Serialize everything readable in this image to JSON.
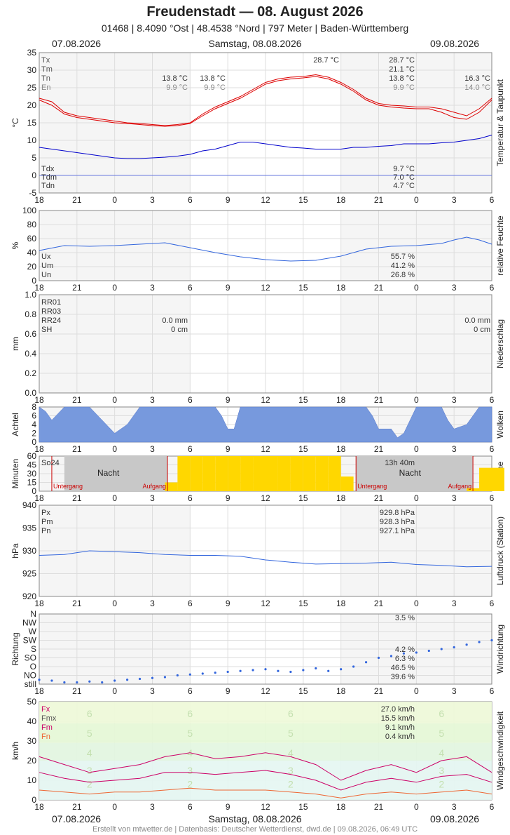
{
  "header": {
    "title": "Freudenstadt  —  08. August 2026",
    "subtitle": "01468  |  8.4090 °Ost  |  48.4538 °Nord  |  797 Meter  |  Baden-Württemberg",
    "date_left": "07.08.2026",
    "date_center": "Samstag, 08.08.2026",
    "date_right": "09.08.2026"
  },
  "footer": "Erstellt von mtwetter.de | Datenbasis: Deutscher Wetterdienst, dwd.de | 09.08.2026, 06:49 UTC",
  "x_ticks": [
    "18",
    "21",
    "0",
    "3",
    "6",
    "9",
    "12",
    "15",
    "18",
    "21",
    "0",
    "3",
    "6"
  ],
  "colors": {
    "temp": "#dd0000",
    "dew": "#0000cc",
    "humidity": "#3366dd",
    "clouds": "#7799dd",
    "sun": "#ffd700",
    "pressure": "#3366dd",
    "direction": "#3366dd",
    "fx": "#cc0066",
    "fm": "#cc0066",
    "fn": "#ee6633"
  },
  "chart_data": [
    {
      "type": "line",
      "panel": "temperature",
      "ylabel": "°C",
      "side_label": "Temperatur & Taupunkt",
      "ylim": [
        -5,
        35
      ],
      "yticks": [
        "35",
        "30",
        "25",
        "20",
        "15",
        "10",
        "5",
        "0",
        "-5"
      ],
      "legend": [
        {
          "label": "Tx",
          "color": "#555"
        },
        {
          "label": "Tm",
          "color": "#555"
        },
        {
          "label": "Tn",
          "color": "#555"
        },
        {
          "label": "En",
          "color": "#888"
        }
      ],
      "legend_dew": [
        {
          "label": "Tdx"
        },
        {
          "label": "Tdm"
        },
        {
          "label": "Tdn"
        }
      ],
      "annotations": [
        {
          "text": "13.8 °C",
          "col": "a"
        },
        {
          "text": "9.9 °C",
          "col": "a"
        },
        {
          "text": "13.8 °C",
          "col": "b"
        },
        {
          "text": "9.9 °C",
          "col": "b"
        },
        {
          "text": "28.7 °C",
          "col": "c"
        },
        {
          "text": "28.7 °C",
          "col": "d"
        },
        {
          "text": "21.1 °C",
          "col": "d"
        },
        {
          "text": "13.8 °C",
          "col": "d"
        },
        {
          "text": "9.9 °C",
          "col": "d"
        },
        {
          "text": "16.3 °C",
          "col": "e"
        },
        {
          "text": "14.0 °C",
          "col": "e"
        },
        {
          "text": "9.7 °C",
          "col": "f"
        },
        {
          "text": "7.0 °C",
          "col": "f"
        },
        {
          "text": "4.7 °C",
          "col": "f"
        }
      ],
      "x_hours": [
        0,
        1,
        2,
        3,
        4,
        5,
        6,
        7,
        8,
        9,
        10,
        11,
        12,
        13,
        14,
        15,
        16,
        17,
        18,
        19,
        20,
        21,
        22,
        23,
        24,
        25,
        26,
        27,
        28,
        29,
        30,
        31,
        32,
        33,
        34,
        35,
        36
      ],
      "series": [
        {
          "name": "Tx",
          "values": [
            22,
            21,
            18,
            17,
            16.5,
            16,
            15.5,
            15,
            14.8,
            14.5,
            14.2,
            14.5,
            15,
            17.5,
            19.5,
            21,
            22.5,
            24.5,
            26.5,
            27.5,
            28,
            28.2,
            28.7,
            28,
            26.5,
            24.5,
            22,
            20.5,
            20,
            19.8,
            19.5,
            19.5,
            19,
            18,
            17,
            19,
            22
          ]
        },
        {
          "name": "Tm",
          "values": [
            21.5,
            20,
            17.5,
            16.5,
            16,
            15.5,
            15,
            14.8,
            14.5,
            14.2,
            14,
            14.2,
            14.8,
            17,
            19,
            20.5,
            22,
            24,
            26,
            27,
            27.5,
            27.8,
            28.2,
            27.5,
            26,
            24,
            21.5,
            20,
            19.5,
            19.2,
            19,
            19,
            18,
            16.5,
            16,
            18,
            21.5
          ]
        },
        {
          "name": "Td",
          "values": [
            8,
            7.5,
            7,
            6.5,
            6,
            5.5,
            5,
            4.8,
            4.8,
            5,
            5.2,
            5.5,
            6,
            7,
            7.5,
            8.5,
            9.5,
            9.5,
            9,
            8.5,
            8,
            7.8,
            7.5,
            7.5,
            7.5,
            8,
            8,
            8.3,
            8.5,
            9,
            9,
            9,
            9.3,
            9.5,
            10,
            10.5,
            11.5
          ]
        }
      ]
    },
    {
      "type": "line",
      "panel": "humidity",
      "ylabel": "%",
      "side_label": "relative Feuchte",
      "ylim": [
        0,
        100
      ],
      "yticks": [
        "100",
        "80",
        "60",
        "40",
        "20",
        "0"
      ],
      "legend": [
        {
          "label": "Ux"
        },
        {
          "label": "Um"
        },
        {
          "label": "Un"
        }
      ],
      "annotations": [
        {
          "text": "55.7 %"
        },
        {
          "text": "41.2 %"
        },
        {
          "text": "26.8 %"
        }
      ],
      "x_hours": [
        0,
        2,
        4,
        6,
        8,
        10,
        12,
        14,
        16,
        18,
        20,
        22,
        24,
        26,
        28,
        30,
        32,
        33,
        34,
        35,
        36
      ],
      "series": [
        {
          "name": "rF",
          "values": [
            43,
            50,
            49,
            50,
            52,
            54,
            47,
            40,
            34,
            30,
            28,
            29,
            35,
            45,
            49,
            50,
            53,
            58,
            62,
            58,
            52
          ]
        }
      ]
    },
    {
      "type": "bar",
      "panel": "precipitation",
      "ylabel": "mm",
      "side_label": "Niederschlag",
      "ylim": [
        0,
        1.0
      ],
      "yticks": [
        "1.0",
        "0.8",
        "0.6",
        "0.4",
        "0.2",
        "0.0"
      ],
      "legend": [
        {
          "label": "RR01"
        },
        {
          "label": "RR03"
        },
        {
          "label": "RR24"
        },
        {
          "label": "SH"
        }
      ],
      "annotations": [
        {
          "text": "0.0 mm"
        },
        {
          "text": "0 cm"
        },
        {
          "text": "0.0 mm"
        },
        {
          "text": "0 cm"
        }
      ],
      "values": []
    },
    {
      "type": "area",
      "panel": "clouds",
      "ylabel": "Achtel",
      "side_label": "Wolken",
      "ylim": [
        0,
        8
      ],
      "yticks": [
        "8",
        "6",
        "4",
        "2",
        "0"
      ],
      "x_hours": [
        0,
        0.5,
        1,
        2,
        3,
        4,
        5,
        6,
        7,
        8,
        9,
        10,
        11,
        12,
        13,
        14,
        14.5,
        15,
        15.5,
        16,
        18,
        20,
        22,
        24,
        26,
        26.5,
        27,
        28,
        28.5,
        29,
        30,
        31,
        32,
        32.5,
        33,
        34,
        35,
        36
      ],
      "values": [
        8,
        7,
        5,
        8,
        8,
        8,
        5,
        2,
        4,
        8,
        8,
        8,
        8,
        8,
        8,
        8,
        6,
        3,
        3,
        8,
        8,
        8,
        8,
        8,
        8,
        6,
        3,
        3,
        1,
        2,
        8,
        8,
        8,
        5,
        3,
        4,
        8,
        8
      ]
    },
    {
      "type": "bar",
      "panel": "sunshine",
      "ylabel": "Minuten",
      "side_label": "Sonne",
      "ylim": [
        0,
        60
      ],
      "yticks": [
        "60",
        "45",
        "30",
        "15",
        "0"
      ],
      "legend": [
        {
          "label": "So24"
        }
      ],
      "annotations": [
        {
          "text": "13h 40m"
        }
      ],
      "night_label": "Nacht",
      "sunset_label": "Untergang",
      "sunrise_label": "Aufgang",
      "x_hours": [
        10,
        11,
        12,
        13,
        14,
        15,
        16,
        17,
        18,
        19,
        20,
        21,
        22,
        23,
        24,
        34,
        35,
        36
      ],
      "values": [
        15,
        60,
        60,
        60,
        60,
        60,
        60,
        60,
        60,
        60,
        60,
        60,
        60,
        60,
        25,
        5,
        40,
        40
      ]
    },
    {
      "type": "line",
      "panel": "pressure",
      "ylabel": "hPa",
      "side_label": "Luftdruck (Station)",
      "ylim": [
        920,
        940
      ],
      "yticks": [
        "940",
        "935",
        "930",
        "925",
        "920"
      ],
      "legend": [
        {
          "label": "Px"
        },
        {
          "label": "Pm"
        },
        {
          "label": "Pn"
        }
      ],
      "annotations": [
        {
          "text": "929.8 hPa"
        },
        {
          "text": "928.3 hPa"
        },
        {
          "text": "927.1 hPa"
        }
      ],
      "x_hours": [
        0,
        2,
        4,
        6,
        8,
        10,
        12,
        14,
        16,
        18,
        20,
        22,
        24,
        26,
        28,
        30,
        32,
        34,
        36
      ],
      "series": [
        {
          "name": "P",
          "values": [
            929,
            929.2,
            930,
            929.8,
            929.6,
            929.2,
            929,
            929,
            928.8,
            928,
            927.5,
            927.1,
            927.2,
            927.3,
            927.5,
            927,
            926.8,
            926.5,
            926.6
          ]
        }
      ]
    },
    {
      "type": "scatter",
      "panel": "direction",
      "ylabel": "Richtung",
      "side_label": "Windrichtung",
      "yticks": [
        "N",
        "NW",
        "W",
        "SW",
        "S",
        "SO",
        "O",
        "NO",
        "still"
      ],
      "annotations": [
        {
          "text": "3.5 %"
        },
        {
          "text": "4.2 %"
        },
        {
          "text": "6.3 %"
        },
        {
          "text": "46.5 %"
        },
        {
          "text": "39.6 %"
        }
      ],
      "x_hours": [
        0,
        1,
        2,
        3,
        4,
        5,
        6,
        7,
        8,
        9,
        10,
        11,
        12,
        13,
        14,
        15,
        16,
        17,
        18,
        19,
        20,
        21,
        22,
        23,
        24,
        25,
        26,
        27,
        28,
        29,
        30,
        31,
        32,
        33,
        34,
        35,
        36
      ],
      "values": [
        0.5,
        0.4,
        0.2,
        0.2,
        0.3,
        0.2,
        0.4,
        0.5,
        0.6,
        0.7,
        0.8,
        1,
        1.1,
        1.2,
        1.3,
        1.4,
        1.5,
        1.6,
        1.7,
        1.5,
        1.4,
        1.6,
        1.8,
        1.5,
        1.7,
        2,
        2.5,
        3,
        3.2,
        3.5,
        3.6,
        3.8,
        4,
        4.2,
        4.5,
        4.8,
        5
      ]
    },
    {
      "type": "line",
      "panel": "wind",
      "ylabel": "km/h",
      "side_label": "Windgeschwindigkeit",
      "ylim": [
        0,
        50
      ],
      "yticks": [
        "50",
        "40",
        "30",
        "20",
        "10",
        "0"
      ],
      "legend": [
        {
          "label": "Fx",
          "color": "#cc0066"
        },
        {
          "label": "Fmx",
          "color": "#555"
        },
        {
          "label": "Fm",
          "color": "#cc0066"
        },
        {
          "label": "Fn",
          "color": "#ee6633"
        }
      ],
      "annotations": [
        {
          "text": "27.0 km/h"
        },
        {
          "text": "15.5 km/h"
        },
        {
          "text": "9.1 km/h"
        },
        {
          "text": "0.4 km/h"
        }
      ],
      "bft_labels": [
        "6",
        "5",
        "4",
        "3",
        "2"
      ],
      "x_hours": [
        0,
        2,
        4,
        6,
        8,
        10,
        12,
        14,
        16,
        18,
        20,
        22,
        24,
        26,
        28,
        30,
        32,
        34,
        36
      ],
      "series": [
        {
          "name": "Fx",
          "values": [
            22,
            18,
            14,
            16,
            18,
            22,
            24,
            21,
            22,
            24,
            22,
            18,
            10,
            15,
            18,
            14,
            20,
            22,
            14
          ]
        },
        {
          "name": "Fm",
          "values": [
            14,
            11,
            9,
            10,
            11,
            14,
            14,
            13,
            14,
            15,
            13,
            10,
            5,
            9,
            11,
            9,
            12,
            13,
            9
          ]
        },
        {
          "name": "Fn",
          "values": [
            5,
            4,
            3,
            4,
            4,
            5,
            6,
            5,
            5,
            5,
            4,
            3,
            1,
            3,
            4,
            3,
            4,
            5,
            3
          ]
        }
      ]
    }
  ]
}
